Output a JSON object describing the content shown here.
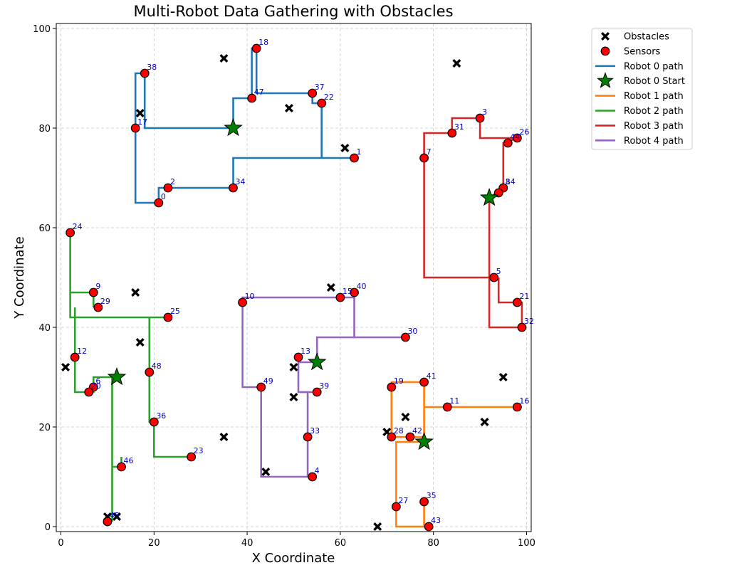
{
  "chart_data": {
    "type": "scatter",
    "title": "Multi-Robot Data Gathering with Obstacles",
    "xlabel": "X Coordinate",
    "ylabel": "Y Coordinate",
    "xlim": [
      -1,
      101
    ],
    "ylim": [
      -1,
      101
    ],
    "xticks": [
      0,
      20,
      40,
      60,
      80,
      100
    ],
    "yticks": [
      0,
      20,
      40,
      60,
      80,
      100
    ],
    "grid": true,
    "legend_position": "outside-top-right",
    "colors": {
      "sensor": "#ff0000",
      "obstacle": "#000000",
      "start": "#008000",
      "robot0": "#1f77b4",
      "robot1": "#ff7f0e",
      "robot2": "#2ca02c",
      "robot3": "#d62728",
      "robot4": "#9467bd",
      "label": "#0000cc"
    },
    "legend": [
      {
        "label": "Obstacles",
        "kind": "obstacle"
      },
      {
        "label": "Sensors",
        "kind": "sensor"
      },
      {
        "label": "Robot 0 path",
        "kind": "line",
        "color": "#1f77b4"
      },
      {
        "label": "Robot 0 Start",
        "kind": "star"
      },
      {
        "label": "Robot 1 path",
        "kind": "line",
        "color": "#ff7f0e"
      },
      {
        "label": "Robot 2 path",
        "kind": "line",
        "color": "#2ca02c"
      },
      {
        "label": "Robot 3 path",
        "kind": "line",
        "color": "#d62728"
      },
      {
        "label": "Robot 4 path",
        "kind": "line",
        "color": "#9467bd"
      }
    ],
    "obstacles": [
      [
        35,
        94
      ],
      [
        85,
        93
      ],
      [
        17,
        83
      ],
      [
        49,
        84
      ],
      [
        61,
        76
      ],
      [
        16,
        47
      ],
      [
        58,
        48
      ],
      [
        17,
        37
      ],
      [
        1,
        32
      ],
      [
        50,
        32
      ],
      [
        50,
        26
      ],
      [
        95,
        30
      ],
      [
        74,
        22
      ],
      [
        70,
        19
      ],
      [
        91,
        21
      ],
      [
        35,
        18
      ],
      [
        44,
        11
      ],
      [
        10,
        2
      ],
      [
        12,
        2
      ],
      [
        68,
        0
      ]
    ],
    "sensors": [
      {
        "id": "0",
        "x": 21,
        "y": 65
      },
      {
        "id": "1",
        "x": 63,
        "y": 74
      },
      {
        "id": "2",
        "x": 23,
        "y": 68
      },
      {
        "id": "3",
        "x": 90,
        "y": 82
      },
      {
        "id": "4",
        "x": 54,
        "y": 10
      },
      {
        "id": "5",
        "x": 93,
        "y": 50
      },
      {
        "id": "6",
        "x": 7,
        "y": 28
      },
      {
        "id": "7",
        "x": 78,
        "y": 74
      },
      {
        "id": "8",
        "x": 95,
        "y": 68
      },
      {
        "id": "9",
        "x": 7,
        "y": 47
      },
      {
        "id": "10",
        "x": 39,
        "y": 45
      },
      {
        "id": "11",
        "x": 83,
        "y": 24
      },
      {
        "id": "12",
        "x": 3,
        "y": 34
      },
      {
        "id": "13",
        "x": 51,
        "y": 34
      },
      {
        "id": "14",
        "x": 95,
        "y": 68
      },
      {
        "id": "15",
        "x": 60,
        "y": 46
      },
      {
        "id": "16",
        "x": 98,
        "y": 24
      },
      {
        "id": "17",
        "x": 16,
        "y": 80
      },
      {
        "id": "18",
        "x": 42,
        "y": 96
      },
      {
        "id": "19",
        "x": 71,
        "y": 28
      },
      {
        "id": "20",
        "x": 6,
        "y": 27
      },
      {
        "id": "21",
        "x": 98,
        "y": 45
      },
      {
        "id": "22",
        "x": 56,
        "y": 85
      },
      {
        "id": "23",
        "x": 28,
        "y": 14
      },
      {
        "id": "24",
        "x": 2,
        "y": 59
      },
      {
        "id": "25",
        "x": 23,
        "y": 42
      },
      {
        "id": "26",
        "x": 98,
        "y": 78
      },
      {
        "id": "27",
        "x": 72,
        "y": 4
      },
      {
        "id": "28",
        "x": 71,
        "y": 18
      },
      {
        "id": "29",
        "x": 8,
        "y": 44
      },
      {
        "id": "30",
        "x": 74,
        "y": 38
      },
      {
        "id": "31",
        "x": 84,
        "y": 79
      },
      {
        "id": "32",
        "x": 99,
        "y": 40
      },
      {
        "id": "33",
        "x": 53,
        "y": 18
      },
      {
        "id": "34",
        "x": 37,
        "y": 68
      },
      {
        "id": "35",
        "x": 78,
        "y": 5
      },
      {
        "id": "36",
        "x": 20,
        "y": 21
      },
      {
        "id": "37",
        "x": 54,
        "y": 87
      },
      {
        "id": "38",
        "x": 18,
        "y": 91
      },
      {
        "id": "39",
        "x": 55,
        "y": 27
      },
      {
        "id": "40",
        "x": 63,
        "y": 47
      },
      {
        "id": "41",
        "x": 78,
        "y": 29
      },
      {
        "id": "42",
        "x": 75,
        "y": 18
      },
      {
        "id": "43",
        "x": 79,
        "y": 0
      },
      {
        "id": "44",
        "x": 96,
        "y": 77
      },
      {
        "id": "45",
        "x": 10,
        "y": 1
      },
      {
        "id": "46",
        "x": 13,
        "y": 12
      },
      {
        "id": "47",
        "x": 41,
        "y": 86
      },
      {
        "id": "48",
        "x": 19,
        "y": 31
      },
      {
        "id": "49",
        "x": 43,
        "y": 28
      },
      {
        "id": "",
        "x": 94,
        "y": 67
      }
    ],
    "starts": [
      [
        37,
        80
      ],
      [
        78,
        17
      ],
      [
        12,
        30
      ],
      [
        92,
        66
      ],
      [
        55,
        33
      ]
    ],
    "series": [
      {
        "name": "Robot 0 path",
        "color": "#1f77b4",
        "segments": [
          [
            [
              37,
              80
            ],
            [
              18,
              80
            ],
            [
              18,
              91
            ],
            [
              16,
              91
            ],
            [
              16,
              65
            ],
            [
              21,
              65
            ],
            [
              21,
              68
            ],
            [
              37,
              68
            ],
            [
              37,
              74
            ],
            [
              56,
              74
            ],
            [
              63,
              74
            ]
          ],
          [
            [
              37,
              80
            ],
            [
              37,
              86
            ],
            [
              41,
              86
            ],
            [
              41,
              96
            ],
            [
              42,
              96
            ],
            [
              42,
              87
            ],
            [
              54,
              87
            ],
            [
              54,
              85
            ],
            [
              56,
              85
            ],
            [
              56,
              74
            ]
          ]
        ]
      },
      {
        "name": "Robot 1 path",
        "color": "#ff7f0e",
        "segments": [
          [
            [
              78,
              17
            ],
            [
              78,
              29
            ],
            [
              71,
              29
            ],
            [
              71,
              18
            ],
            [
              75,
              18
            ],
            [
              78,
              18
            ]
          ],
          [
            [
              78,
              17
            ],
            [
              72,
              17
            ],
            [
              72,
              0
            ],
            [
              78,
              0
            ],
            [
              78,
              5
            ],
            [
              78,
              0
            ],
            [
              79,
              0
            ]
          ],
          [
            [
              78,
              24
            ],
            [
              98,
              24
            ]
          ]
        ]
      },
      {
        "name": "Robot 2 path",
        "color": "#2ca02c",
        "segments": [
          [
            [
              2,
              59
            ],
            [
              2,
              42
            ],
            [
              23,
              42
            ]
          ],
          [
            [
              2,
              47
            ],
            [
              7,
              47
            ],
            [
              7,
              44
            ]
          ],
          [
            [
              3,
              44
            ],
            [
              3,
              27
            ],
            [
              7,
              27
            ],
            [
              7,
              30
            ],
            [
              11,
              30
            ],
            [
              11,
              1
            ]
          ],
          [
            [
              19,
              42
            ],
            [
              19,
              21
            ],
            [
              20,
              21
            ],
            [
              20,
              14
            ],
            [
              28,
              14
            ]
          ],
          [
            [
              13,
              14
            ],
            [
              13,
              12
            ],
            [
              11,
              12
            ]
          ]
        ]
      },
      {
        "name": "Robot 3 path",
        "color": "#d62728",
        "segments": [
          [
            [
              92,
              66
            ],
            [
              95,
              68
            ],
            [
              95,
              77
            ],
            [
              98,
              78
            ],
            [
              90,
              78
            ],
            [
              90,
              82
            ],
            [
              84,
              82
            ],
            [
              84,
              79
            ],
            [
              78,
              79
            ],
            [
              78,
              50
            ],
            [
              93,
              50
            ]
          ],
          [
            [
              92,
              66
            ],
            [
              92,
              40
            ],
            [
              99,
              40
            ],
            [
              99,
              45
            ],
            [
              94,
              45
            ],
            [
              94,
              50
            ]
          ]
        ]
      },
      {
        "name": "Robot 4 path",
        "color": "#9467bd",
        "segments": [
          [
            [
              55,
              33
            ],
            [
              51,
              33
            ],
            [
              51,
              27
            ],
            [
              53,
              27
            ],
            [
              53,
              10
            ],
            [
              43,
              10
            ],
            [
              43,
              28
            ],
            [
              39,
              28
            ],
            [
              39,
              46
            ],
            [
              63,
              46
            ],
            [
              63,
              38
            ],
            [
              74,
              38
            ]
          ],
          [
            [
              55,
              33
            ],
            [
              55,
              38
            ],
            [
              63,
              38
            ]
          ],
          [
            [
              51,
              27
            ],
            [
              55,
              27
            ]
          ]
        ]
      }
    ]
  }
}
